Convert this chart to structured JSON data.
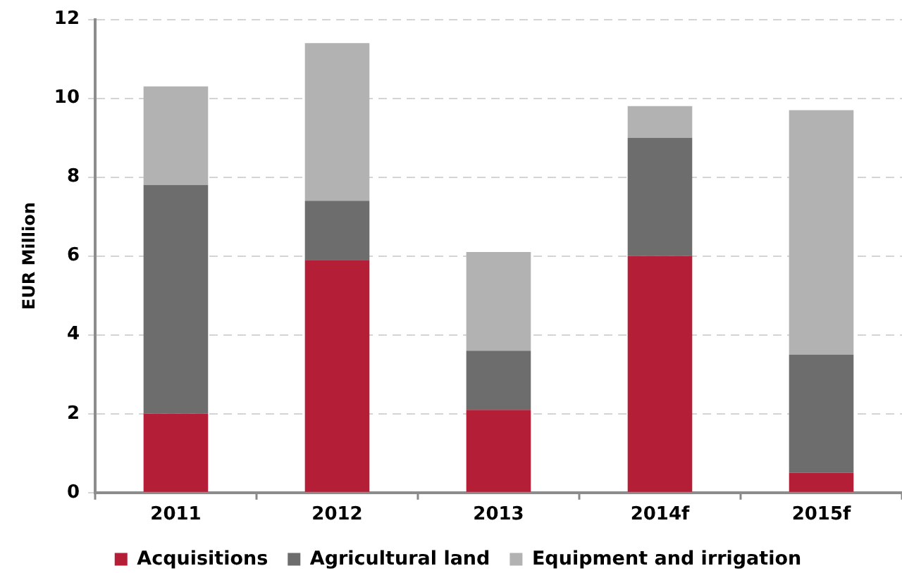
{
  "chart_data": {
    "type": "bar",
    "ylabel": "EUR Million",
    "categories": [
      "2011",
      "2012",
      "2013",
      "2014f",
      "2015f"
    ],
    "series": [
      {
        "name": "Acquisitions",
        "color": "#b41f37",
        "values": [
          2.0,
          5.9,
          2.1,
          6.0,
          0.5
        ]
      },
      {
        "name": "Agricultural land",
        "color": "#6d6d6d",
        "values": [
          5.8,
          1.5,
          1.5,
          3.0,
          3.0
        ]
      },
      {
        "name": "Equipment and irrigation",
        "color": "#b2b2b2",
        "values": [
          2.5,
          4.0,
          2.5,
          0.8,
          6.2
        ]
      }
    ],
    "stacked": true,
    "ylim": [
      0,
      12
    ],
    "yticks": [
      0,
      2,
      4,
      6,
      8,
      10,
      12
    ],
    "grid": "y",
    "legend": "bottom"
  }
}
